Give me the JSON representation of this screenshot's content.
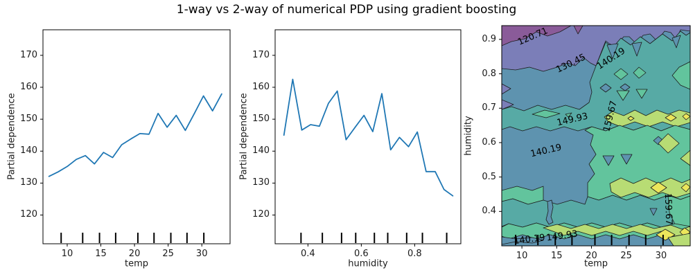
{
  "title": "1-way vs 2-way of numerical PDP using gradient boosting",
  "contour_colors": {
    "c0": "#8a5b99",
    "c1": "#7b7eb8",
    "c2": "#5e93af",
    "c3": "#57aaa5",
    "c4": "#62c49d",
    "c5": "#b8dc74",
    "c6": "#ece65b"
  },
  "chart_data": [
    {
      "type": "line",
      "id": "pdp-temp",
      "xlabel": "temp",
      "ylabel": "Partial dependence",
      "xlim": [
        6.4,
        34.2
      ],
      "ylim": [
        111,
        178
      ],
      "xticks": [
        10,
        15,
        20,
        25,
        30
      ],
      "yticks": [
        120,
        130,
        140,
        150,
        160,
        170
      ],
      "line_color": "#1f77b4",
      "deciles": [
        9.1,
        12.3,
        14.8,
        17.2,
        20.5,
        22.9,
        25.4,
        27.8,
        30.3
      ],
      "x": [
        7.3,
        8.65,
        10.0,
        11.35,
        12.7,
        14.05,
        15.4,
        16.75,
        18.1,
        19.45,
        20.8,
        22.15,
        23.5,
        24.85,
        26.2,
        27.55,
        28.9,
        30.25,
        31.6,
        32.95
      ],
      "y": [
        132.1,
        133.5,
        135.2,
        137.4,
        138.6,
        136.0,
        139.6,
        138.0,
        142.0,
        143.8,
        145.5,
        145.3,
        151.8,
        147.5,
        151.2,
        146.5,
        151.8,
        157.3,
        152.6,
        157.9
      ]
    },
    {
      "type": "line",
      "id": "pdp-humidity",
      "xlabel": "humidity",
      "ylabel": "Partial dependence",
      "xlim": [
        0.277,
        0.973
      ],
      "ylim": [
        111,
        178
      ],
      "xticks": [
        0.4,
        0.6,
        0.8
      ],
      "yticks": [
        120,
        130,
        140,
        150,
        160,
        170
      ],
      "line_color": "#1f77b4",
      "deciles": [
        0.374,
        0.454,
        0.526,
        0.579,
        0.649,
        0.699,
        0.77,
        0.829,
        0.92
      ],
      "x": [
        0.31,
        0.343,
        0.377,
        0.41,
        0.443,
        0.477,
        0.51,
        0.543,
        0.577,
        0.61,
        0.643,
        0.677,
        0.71,
        0.743,
        0.777,
        0.81,
        0.843,
        0.877,
        0.91,
        0.943
      ],
      "y": [
        145.0,
        162.5,
        146.6,
        148.3,
        147.8,
        155.0,
        158.8,
        143.6,
        147.5,
        151.2,
        146.1,
        158.0,
        140.4,
        144.3,
        141.4,
        146.0,
        133.6,
        133.6,
        128.0,
        126.0
      ]
    },
    {
      "type": "contour",
      "id": "pdp-2way",
      "xlabel": "temp",
      "ylabel": "humidity",
      "xlim": [
        7.1,
        34.2
      ],
      "ylim": [
        0.3,
        0.94
      ],
      "xticks": [
        10,
        15,
        20,
        25,
        30
      ],
      "yticks": [
        0.4,
        0.5,
        0.6,
        0.7,
        0.8,
        0.9
      ],
      "levels": [
        120.71,
        130.45,
        140.19,
        149.93,
        159.67
      ],
      "colormap": "viridis",
      "deciles_x": [
        9.1,
        12.3,
        14.8,
        17.2,
        20.5,
        22.9,
        25.4,
        27.8,
        30.3
      ],
      "clabels": [
        "120.71",
        "130.45",
        "140.19",
        "149.93",
        "159.67",
        "140.19",
        "159.67",
        "140.19",
        "149.93"
      ]
    }
  ]
}
